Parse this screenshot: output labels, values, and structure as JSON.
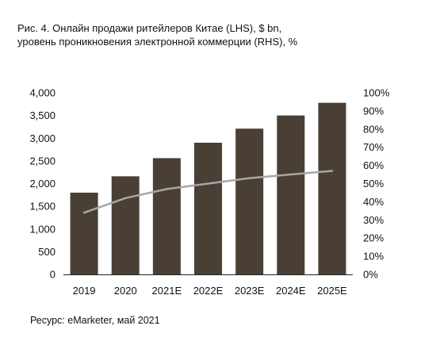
{
  "title_line1": "Рис. 4. Онлайн продажи ритейлеров Китае (LHS), $ bn,",
  "title_line2": "уровень проникновения электронной коммерции (RHS), %",
  "source": "Ресурс: eMarketer, май 2021",
  "chart_data": {
    "type": "bar",
    "categories": [
      "2019",
      "2020",
      "2021E",
      "2022E",
      "2023E",
      "2024E",
      "2025E"
    ],
    "series": [
      {
        "type": "bar",
        "axis": "left",
        "color": "#4a3f35",
        "values": [
          1800,
          2160,
          2560,
          2900,
          3210,
          3500,
          3780
        ]
      },
      {
        "type": "line",
        "axis": "right",
        "color": "#a6a6a6",
        "values": [
          34,
          42,
          47,
          50,
          53,
          55,
          57
        ]
      }
    ],
    "left_axis": {
      "ylim": [
        0,
        4000
      ],
      "ticks": [
        "0",
        "500",
        "1,000",
        "1,500",
        "2,000",
        "2,500",
        "3,000",
        "3,500",
        "4,000"
      ]
    },
    "right_axis": {
      "ylim": [
        0,
        100
      ],
      "ticks": [
        "0%",
        "10%",
        "20%",
        "30%",
        "40%",
        "50%",
        "60%",
        "70%",
        "80%",
        "90%",
        "100%"
      ]
    },
    "grid": false
  }
}
